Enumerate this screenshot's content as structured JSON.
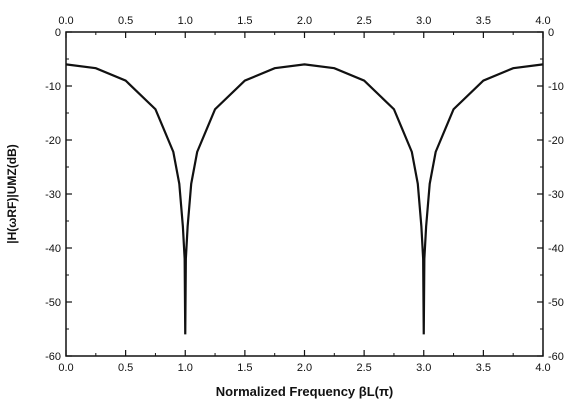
{
  "chart_data": {
    "type": "line",
    "title": "",
    "xlabel": "Normalized Frequency βL(π)",
    "ylabel": "|H(ωRF)|UMZ(dB)",
    "xlim": [
      0.0,
      4.0
    ],
    "ylim": [
      -60,
      0
    ],
    "x_ticks": [
      "0.0",
      "0.5",
      "1.0",
      "1.5",
      "2.0",
      "2.5",
      "3.0",
      "3.5",
      "4.0"
    ],
    "y_ticks": [
      "0",
      "-10",
      "-20",
      "-30",
      "-40",
      "-50",
      "-60"
    ],
    "grid": false,
    "legend": "none",
    "series": [
      {
        "x": [
          0.0,
          0.25,
          0.5,
          0.75,
          0.9,
          0.95,
          0.98,
          0.995,
          1.0,
          1.005,
          1.02,
          1.05,
          1.1,
          1.25,
          1.5,
          1.75,
          2.0,
          2.25,
          2.5,
          2.75,
          2.9,
          2.95,
          2.98,
          2.995,
          3.0,
          3.005,
          3.02,
          3.05,
          3.1,
          3.25,
          3.5,
          3.75,
          4.0
        ],
        "y": [
          -6.0,
          -6.7,
          -9.0,
          -14.3,
          -22.2,
          -28.1,
          -36.0,
          -42.0,
          -56.0,
          -42.0,
          -36.0,
          -28.1,
          -22.2,
          -14.3,
          -9.0,
          -6.7,
          -6.0,
          -6.7,
          -9.0,
          -14.3,
          -22.2,
          -28.1,
          -36.0,
          -42.0,
          -56.0,
          -42.0,
          -36.0,
          -28.1,
          -22.2,
          -14.3,
          -9.0,
          -6.7,
          -6.0
        ]
      }
    ]
  },
  "colors": {
    "curve": "#111111",
    "axes": "#111111",
    "background": "#ffffff"
  }
}
